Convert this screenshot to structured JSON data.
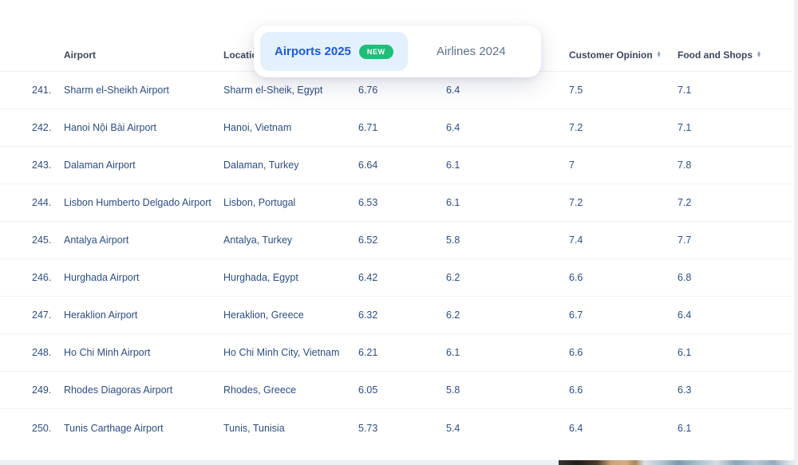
{
  "colors": {
    "page_bg": "#ffffff",
    "accent_blue": "#1d5bd8",
    "tab_active_bg": "#e3f0fd",
    "badge_green": "#1fbe77",
    "inactive_tab": "#5e7389",
    "header_text": "#3a475c",
    "row_text": "#2e4d80",
    "separator": "#eef1f5",
    "sort_icon": "#98a2b3",
    "right_band": "#edeff2",
    "bottom_strip": "#eaf0f4"
  },
  "tab_switcher": {
    "tabs": [
      {
        "label": "Airports 2025",
        "badge": "NEW",
        "active": true
      },
      {
        "label": "Airlines 2024",
        "badge": "",
        "active": false
      }
    ]
  },
  "table": {
    "columns": [
      {
        "label": "Airport",
        "sortable": false
      },
      {
        "label": "Location",
        "sortable": false
      },
      {
        "label": "",
        "sortable": false
      },
      {
        "label": "",
        "sortable": false
      },
      {
        "label": "Customer Opinion",
        "sortable": true
      },
      {
        "label": "Food and Shops",
        "sortable": true
      }
    ],
    "rows": [
      {
        "rank": "241.",
        "airport": "Sharm el-Sheikh Airport",
        "location": "Sharm el-Sheik, Egypt",
        "score1": "6.76",
        "score2": "6.4",
        "customer_opinion": "7.5",
        "food_and_shops": "7.1"
      },
      {
        "rank": "242.",
        "airport": "Hanoi Nội Bài Airport",
        "location": "Hanoi, Vietnam",
        "score1": "6.71",
        "score2": "6.4",
        "customer_opinion": "7.2",
        "food_and_shops": "7.1"
      },
      {
        "rank": "243.",
        "airport": "Dalaman Airport",
        "location": "Dalaman, Turkey",
        "score1": "6.64",
        "score2": "6.1",
        "customer_opinion": "7",
        "food_and_shops": "7.8"
      },
      {
        "rank": "244.",
        "airport": "Lisbon Humberto Delgado Airport",
        "location": "Lisbon, Portugal",
        "score1": "6.53",
        "score2": "6.1",
        "customer_opinion": "7.2",
        "food_and_shops": "7.2"
      },
      {
        "rank": "245.",
        "airport": "Antalya Airport",
        "location": "Antalya, Turkey",
        "score1": "6.52",
        "score2": "5.8",
        "customer_opinion": "7.4",
        "food_and_shops": "7.7"
      },
      {
        "rank": "246.",
        "airport": "Hurghada Airport",
        "location": "Hurghada, Egypt",
        "score1": "6.42",
        "score2": "6.2",
        "customer_opinion": "6.6",
        "food_and_shops": "6.8"
      },
      {
        "rank": "247.",
        "airport": "Heraklion Airport",
        "location": "Heraklion, Greece",
        "score1": "6.32",
        "score2": "6.2",
        "customer_opinion": "6.7",
        "food_and_shops": "6.4"
      },
      {
        "rank": "248.",
        "airport": "Ho Chi Minh Airport",
        "location": "Ho Chi Minh City, Vietnam",
        "score1": "6.21",
        "score2": "6.1",
        "customer_opinion": "6.6",
        "food_and_shops": "6.1"
      },
      {
        "rank": "249.",
        "airport": "Rhodes Diagoras Airport",
        "location": "Rhodes, Greece",
        "score1": "6.05",
        "score2": "5.8",
        "customer_opinion": "6.6",
        "food_and_shops": "6.3"
      },
      {
        "rank": "250.",
        "airport": "Tunis Carthage Airport",
        "location": "Tunis, Tunisia",
        "score1": "5.73",
        "score2": "5.4",
        "customer_opinion": "6.4",
        "food_and_shops": "6.1"
      }
    ]
  }
}
